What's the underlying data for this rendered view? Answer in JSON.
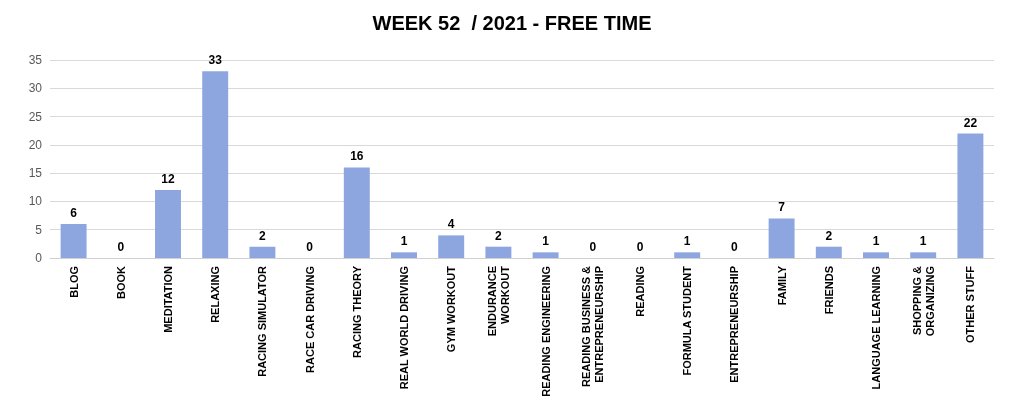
{
  "chart_data": {
    "type": "bar",
    "title": "WEEK 52  / 2021 - FREE TIME",
    "categories": [
      "BLOG",
      "BOOK",
      "MEDITATION",
      "RELAXING",
      "RACING SIMULATOR",
      "RACE CAR DRIVING",
      "RACING THEORY",
      "REAL WORLD DRIVING",
      "GYM WORKOUT",
      "ENDURANCE\nWORKOUT",
      "READING ENGINEERING",
      "READING BUSINESS &\nENTREPRENEURSHIP",
      "READING",
      "FORMULA STUDENT",
      "ENTREPRENEURSHIP",
      "FAMILY",
      "FRIENDS",
      "LANGUAGE LEARNING",
      "SHOPPING &\nORGANIZING",
      "OTHER STUFF"
    ],
    "values": [
      6,
      0,
      12,
      33,
      2,
      0,
      16,
      1,
      4,
      2,
      1,
      0,
      0,
      1,
      0,
      7,
      2,
      1,
      1,
      22
    ],
    "color": "#8ea6e0",
    "ylim": [
      0,
      35
    ],
    "yticks": [
      0,
      5,
      10,
      15,
      20,
      25,
      30,
      35
    ],
    "grid": "y",
    "data_labels": true
  }
}
